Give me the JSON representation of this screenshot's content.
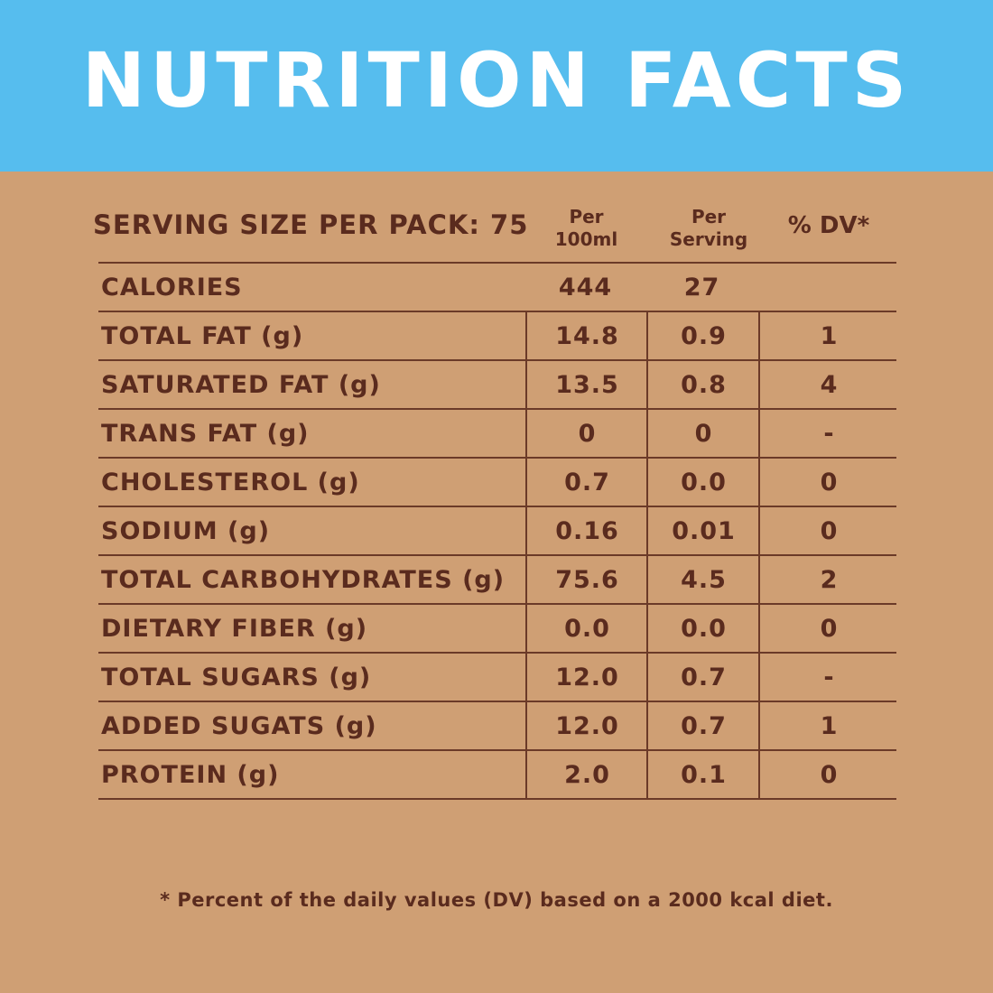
{
  "title": "NUTRITION FACTS",
  "header": {
    "serving_size": "SERVING SIZE PER PACK: 75",
    "col_per_100ml": [
      "Per",
      "100ml"
    ],
    "col_per_serving": [
      "Per",
      "Serving"
    ],
    "col_dv": "% DV*"
  },
  "rows": [
    {
      "label": "CALORIES",
      "per_100ml": "444",
      "per_serving": "27",
      "dv": ""
    },
    {
      "label": "TOTAL FAT (g)",
      "per_100ml": "14.8",
      "per_serving": "0.9",
      "dv": "1"
    },
    {
      "label": "SATURATED FAT (g)",
      "per_100ml": "13.5",
      "per_serving": "0.8",
      "dv": "4"
    },
    {
      "label": "TRANS FAT (g)",
      "per_100ml": "0",
      "per_serving": "0",
      "dv": "-"
    },
    {
      "label": "CHOLESTEROL (g)",
      "per_100ml": "0.7",
      "per_serving": "0.0",
      "dv": "0"
    },
    {
      "label": "SODIUM (g)",
      "per_100ml": "0.16",
      "per_serving": "0.01",
      "dv": "0"
    },
    {
      "label": "TOTAL CARBOHYDRATES (g)",
      "per_100ml": "75.6",
      "per_serving": "4.5",
      "dv": "2"
    },
    {
      "label": "DIETARY FIBER (g)",
      "per_100ml": "0.0",
      "per_serving": "0.0",
      "dv": "0"
    },
    {
      "label": "TOTAL SUGARS (g)",
      "per_100ml": "12.0",
      "per_serving": "0.7",
      "dv": "-"
    },
    {
      "label": "ADDED SUGATS (g)",
      "per_100ml": "12.0",
      "per_serving": "0.7",
      "dv": "1"
    },
    {
      "label": "PROTEIN (g)",
      "per_100ml": "2.0",
      "per_serving": "0.1",
      "dv": "0"
    }
  ],
  "footnote": "* Percent of the daily values (DV) based on a 2000 kcal diet.",
  "colors": {
    "banner": "#56bdee",
    "background": "#cf9f74",
    "text": "#5a2b1e",
    "title_text": "#ffffff"
  }
}
